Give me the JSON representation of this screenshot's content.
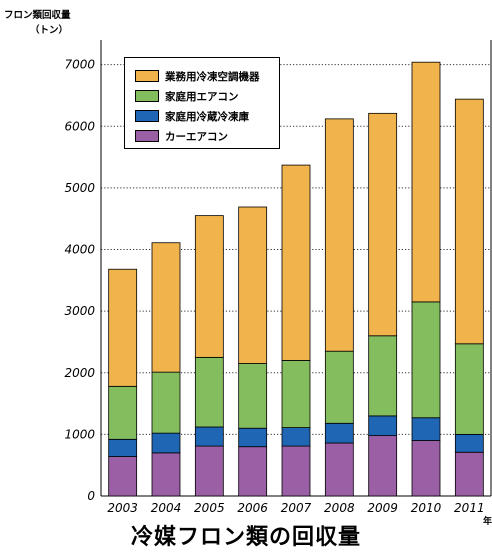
{
  "chart_data": {
    "type": "bar",
    "stacked": true,
    "ylabel": "フロン類回収量",
    "yunit": "（トン）",
    "xunit": "年",
    "caption": "冷媒フロン類の回収量",
    "categories": [
      "2003",
      "2004",
      "2005",
      "2006",
      "2007",
      "2008",
      "2009",
      "2010",
      "2011"
    ],
    "ylim": [
      0,
      7400
    ],
    "yticks": [
      0,
      1000,
      2000,
      3000,
      4000,
      5000,
      6000,
      7000
    ],
    "grid": "horizontal-dotted",
    "legend_placement": "top-left",
    "series": [
      {
        "name": "カーエアコン",
        "color": "#9b5fa6",
        "values": [
          640,
          700,
          810,
          800,
          810,
          860,
          980,
          900,
          710
        ]
      },
      {
        "name": "家庭用冷蔵冷凍庫",
        "color": "#1f66b4",
        "values": [
          280,
          320,
          310,
          300,
          300,
          320,
          320,
          370,
          290
        ]
      },
      {
        "name": "家庭用エアコン",
        "color": "#84bd5e",
        "values": [
          860,
          990,
          1130,
          1050,
          1090,
          1170,
          1300,
          1880,
          1470
        ]
      },
      {
        "name": "業務用冷凍空調機器",
        "color": "#f1b44c",
        "values": [
          1900,
          2100,
          2300,
          2540,
          3170,
          3770,
          3610,
          3890,
          3970
        ]
      }
    ],
    "legend_order": [
      "業務用冷凍空調機器",
      "家庭用エアコン",
      "家庭用冷蔵冷凍庫",
      "カーエアコン"
    ]
  }
}
